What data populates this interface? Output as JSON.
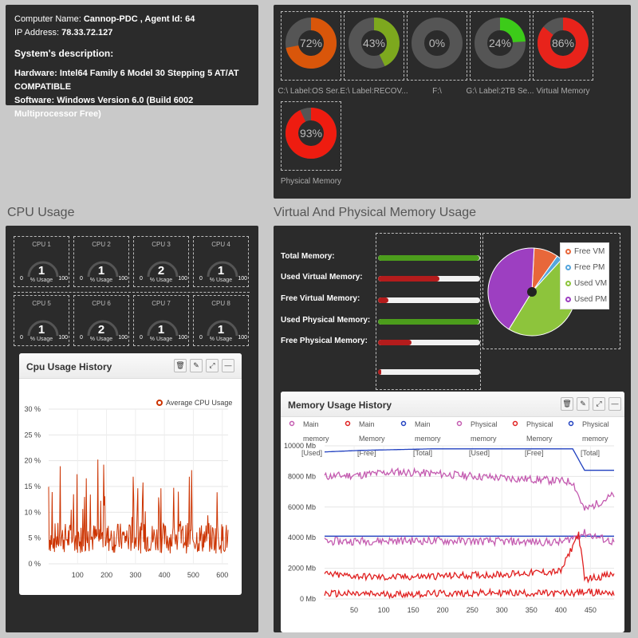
{
  "system": {
    "computer_name_label": "Computer Name:",
    "computer_name": "Cannop-PDC",
    "agent_id_label": ", Agent Id:",
    "agent_id": "64",
    "ip_label": "IP Address:",
    "ip": "78.33.72.127",
    "description_title": "System's description:",
    "hardware_label": "Hardware:",
    "hardware": "Intel64 Family 6 Model 30 Stepping 5 AT/AT COMPATIBLE",
    "software_label": "Software:",
    "software": "Windows Version 6.0 (Build 6002 Multiprocessor Free)"
  },
  "disks": [
    {
      "label": "C:\\ Label:OS Ser...",
      "value_text": "72%",
      "value": 72,
      "color": "#d9560a"
    },
    {
      "label": "E:\\ Label:RECOV...",
      "value_text": "43%",
      "value": 43,
      "color": "#7da81e"
    },
    {
      "label": "F:\\",
      "value_text": "0%",
      "value": 0,
      "color": "#888888"
    },
    {
      "label": "G:\\ Label:2TB Se...",
      "value_text": "24%",
      "value": 24,
      "color": "#3ccb19"
    },
    {
      "label": "Virtual Memory",
      "value_text": "86%",
      "value": 86,
      "color": "#e8231b"
    },
    {
      "label": "Physical Memory",
      "value_text": "93%",
      "value": 93,
      "color": "#ee1c10"
    }
  ],
  "cpu_title": "CPU Usage",
  "cpus": [
    {
      "name": "CPU 1",
      "value": "1"
    },
    {
      "name": "CPU 2",
      "value": "1"
    },
    {
      "name": "CPU 3",
      "value": "2"
    },
    {
      "name": "CPU 4",
      "value": "1"
    },
    {
      "name": "CPU 5",
      "value": "1"
    },
    {
      "name": "CPU 6",
      "value": "2"
    },
    {
      "name": "CPU 7",
      "value": "1"
    },
    {
      "name": "CPU 8",
      "value": "1"
    }
  ],
  "cpu_gauge": {
    "min": "0",
    "max": "100",
    "unit": "% Usage"
  },
  "cpu_history": {
    "title": "Cpu Usage History",
    "legend": "Average CPU Usage"
  },
  "mem_title": "Virtual And Physical Memory Usage",
  "memory_bars": [
    {
      "label": "Total Memory:",
      "fill": 0.99,
      "color": "#4c9d1c"
    },
    {
      "label": "Used Virtual Memory:",
      "fill": 0.6,
      "color": "#b41c1c"
    },
    {
      "label": "Free Virtual Memory:",
      "fill": 0.1,
      "color": "#b41c1c"
    },
    {
      "label": "Used Physical Memory:",
      "fill": 0.99,
      "color": "#4c9d1c"
    },
    {
      "label": "Free Physical Memory:",
      "fill": 0.33,
      "color": "#b41c1c"
    },
    {
      "label": "",
      "fill": 0.03,
      "color": "#b41c1c"
    }
  ],
  "mem_pie": {
    "legend": [
      {
        "name": "Free VM",
        "color": "#e8673a"
      },
      {
        "name": "Free PM",
        "color": "#55a6dd"
      },
      {
        "name": "Used VM",
        "color": "#8dc43c"
      },
      {
        "name": "Used PM",
        "color": "#9d3fc1"
      }
    ]
  },
  "memory_history": {
    "title": "Memory Usage History",
    "legend": [
      {
        "l1": "Main",
        "l2": "memory",
        "l3": "[Used]",
        "color": "#c45bb0"
      },
      {
        "l1": "Main",
        "l2": "Memory",
        "l3": "[Free]",
        "color": "#e02020"
      },
      {
        "l1": "Main",
        "l2": "memory",
        "l3": "[Total]",
        "color": "#2040c0"
      },
      {
        "l1": "Physical",
        "l2": "memory",
        "l3": "[Used]",
        "color": "#c45bb0"
      },
      {
        "l1": "Physical",
        "l2": "Memory",
        "l3": "[Free]",
        "color": "#e02020"
      },
      {
        "l1": "Physical",
        "l2": "memory",
        "l3": "[Total]",
        "color": "#2040c0"
      }
    ]
  },
  "chart_data": [
    {
      "type": "line",
      "title": "Cpu Usage History",
      "series": [
        {
          "name": "Average CPU Usage",
          "color": "#cc3300"
        }
      ],
      "xlim": [
        0,
        620
      ],
      "ylim": [
        0,
        30
      ],
      "xticks": [
        "100",
        "200",
        "300",
        "400",
        "500",
        "600"
      ],
      "yticks": [
        "0 %",
        "5 %",
        "10 %",
        "15 %",
        "20 %",
        "25 %",
        "30 %"
      ],
      "grid": true,
      "legend_position": "top-right"
    },
    {
      "type": "line",
      "title": "Memory Usage History",
      "xlim": [
        0,
        490
      ],
      "ylim": [
        0,
        10000
      ],
      "xticks": [
        "50",
        "100",
        "150",
        "200",
        "250",
        "300",
        "350",
        "400",
        "450"
      ],
      "yticks": [
        "0 Mb",
        "2000 Mb",
        "4000 Mb",
        "6000 Mb",
        "8000 Mb",
        "10000 Mb"
      ],
      "series": [
        {
          "name": "Main memory [Total]",
          "color": "#2040c0",
          "x": [
            0,
            60,
            120,
            180,
            240,
            300,
            360,
            420,
            440,
            490
          ],
          "values": [
            9600,
            9700,
            9750,
            9800,
            9800,
            9800,
            9800,
            9800,
            8400,
            8400
          ]
        },
        {
          "name": "Main memory [Used]",
          "color": "#c45bb0",
          "x": [
            0,
            60,
            120,
            180,
            240,
            300,
            360,
            420,
            440,
            490
          ],
          "values": [
            8000,
            8100,
            8300,
            8200,
            8050,
            7900,
            7800,
            7650,
            5800,
            6800
          ]
        },
        {
          "name": "Physical memory [Total]",
          "color": "#2040c0",
          "x": [
            0,
            490
          ],
          "values": [
            4100,
            4100
          ]
        },
        {
          "name": "Physical memory [Used]",
          "color": "#c45bb0",
          "x": [
            0,
            100,
            200,
            300,
            400,
            440,
            490
          ],
          "values": [
            3750,
            3800,
            3800,
            3750,
            3700,
            4300,
            3700
          ]
        },
        {
          "name": "Main Memory [Free]",
          "color": "#e02020",
          "x": [
            0,
            100,
            200,
            300,
            400,
            430,
            440,
            490
          ],
          "values": [
            1600,
            1400,
            1500,
            1600,
            1800,
            4300,
            1300,
            1600
          ]
        },
        {
          "name": "Physical Memory [Free]",
          "color": "#e02020",
          "x": [
            0,
            100,
            200,
            300,
            400,
            440,
            490
          ],
          "values": [
            350,
            300,
            350,
            400,
            350,
            450,
            400
          ]
        }
      ],
      "grid": true,
      "legend_position": "top"
    }
  ]
}
